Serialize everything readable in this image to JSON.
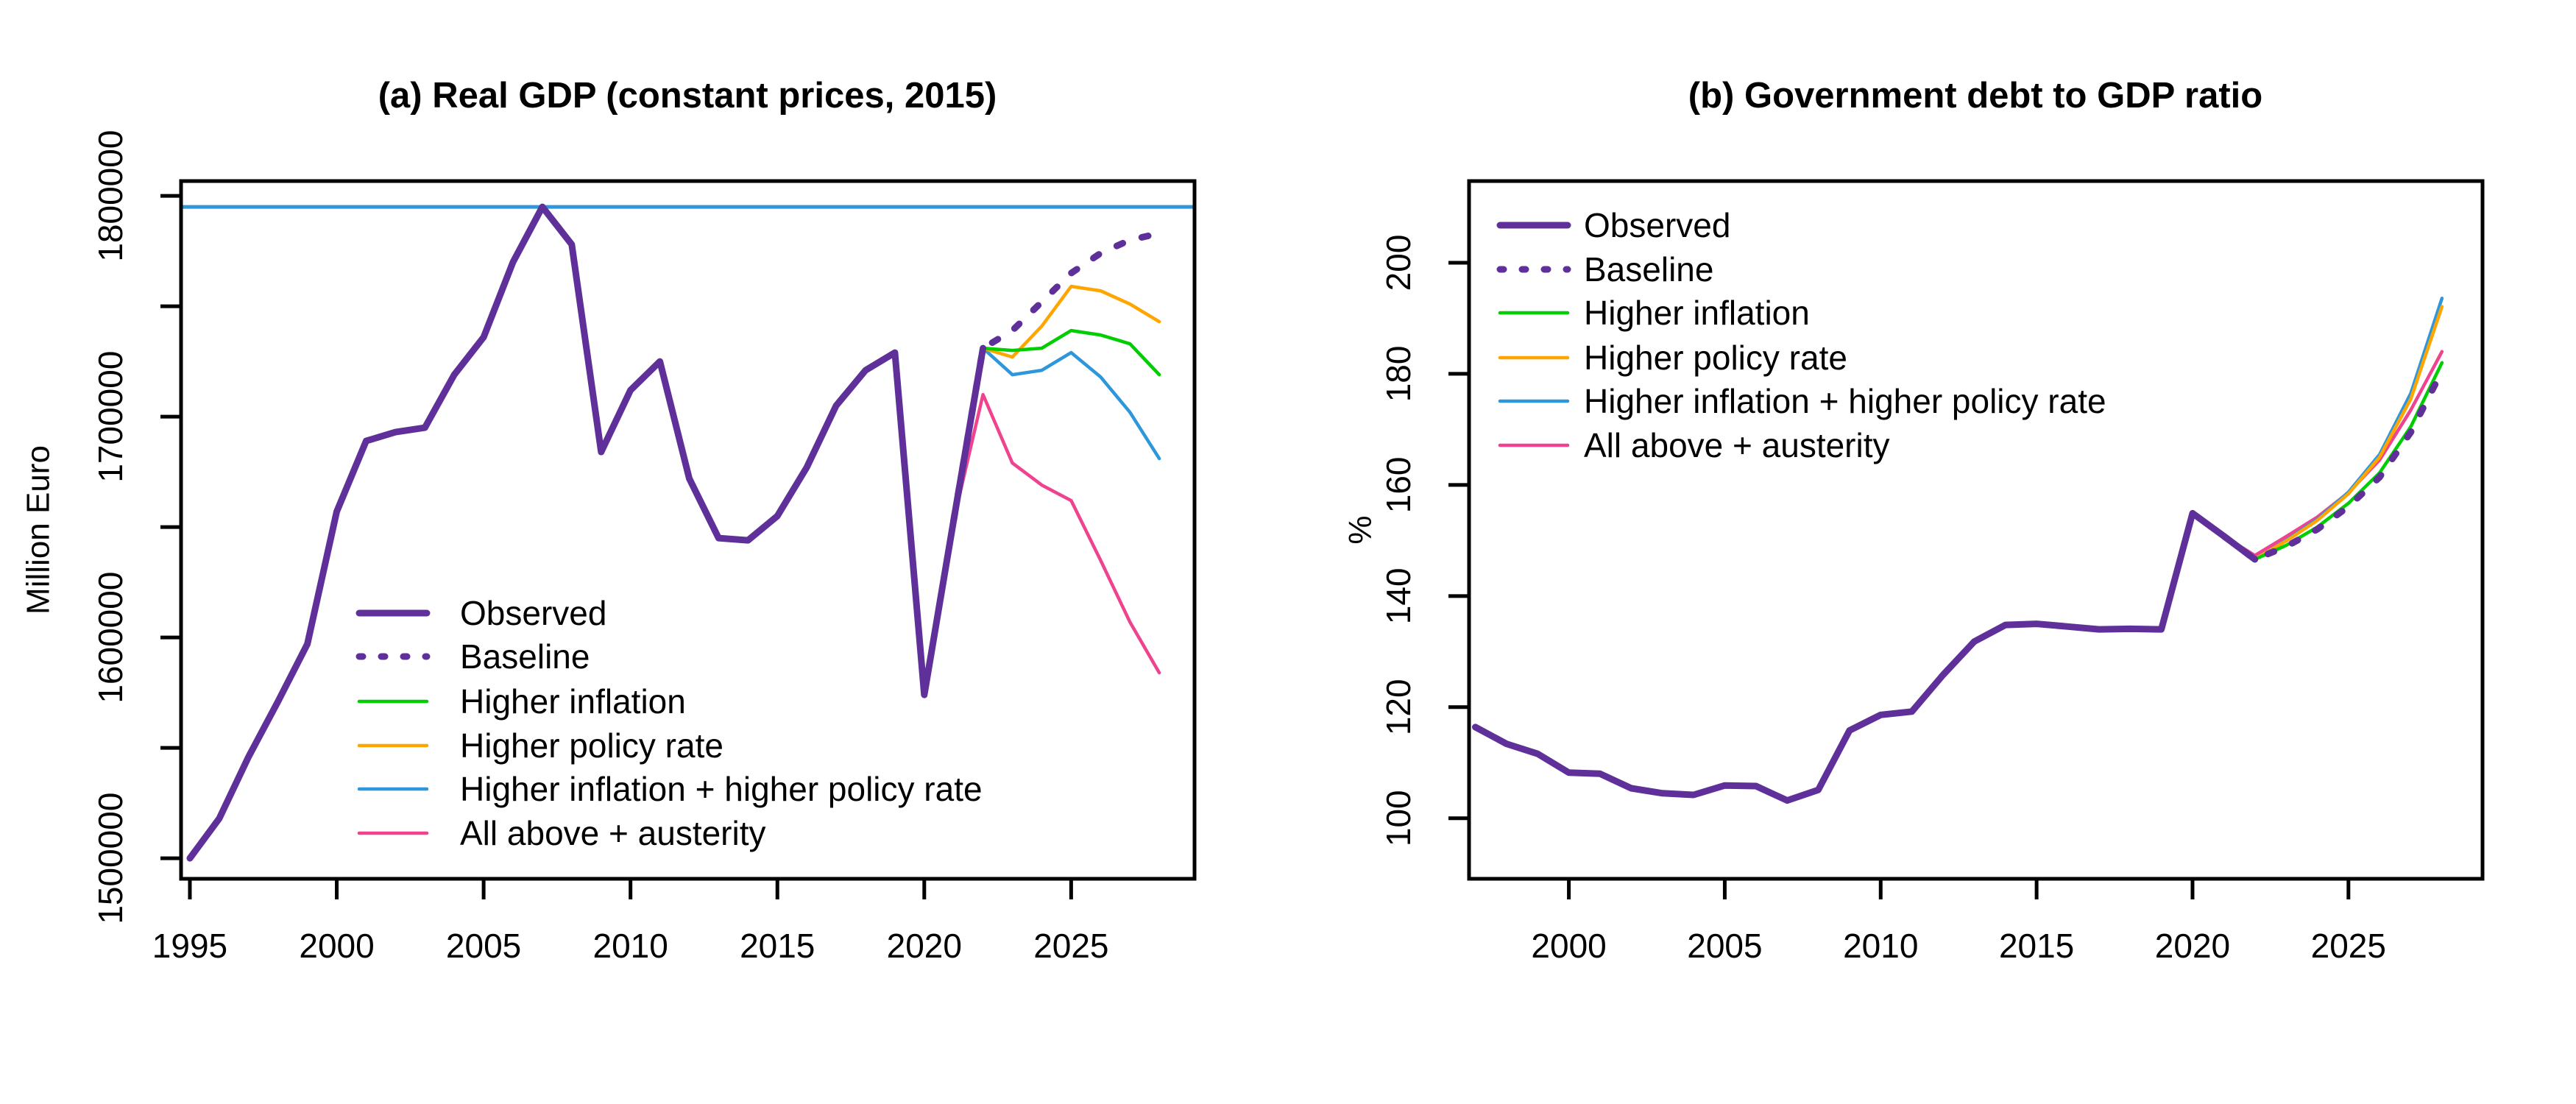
{
  "figure": {
    "background": "#ffffff",
    "axis_color": "#000000"
  },
  "chart_data": [
    {
      "id": "real-gdp",
      "type": "line",
      "title": "(a) Real GDP (constant prices, 2015)",
      "xlabel": "",
      "ylabel": "Million Euro",
      "xlim": [
        1994.7,
        2029.2
      ],
      "ylim": [
        1490700,
        1806700
      ],
      "grid": false,
      "legend_position": "left-bottom-inside",
      "x_ticks": [
        1995,
        2000,
        2005,
        2010,
        2015,
        2020,
        2025
      ],
      "y_ticks": [
        {
          "value": 1800000,
          "label": "1800000"
        },
        {
          "value": 1750000,
          "label": ""
        },
        {
          "value": 1700000,
          "label": "1700000"
        },
        {
          "value": 1650000,
          "label": ""
        },
        {
          "value": 1600000,
          "label": "1600000"
        },
        {
          "value": 1550000,
          "label": ""
        },
        {
          "value": 1500000,
          "label": "1500000"
        }
      ],
      "reference_line": {
        "value": 1795000,
        "color": "#2E97DB",
        "orientation": "horizontal"
      },
      "legend": [
        "Observed",
        "Baseline",
        "Higher inflation",
        "Higher policy rate",
        "Higher inflation + higher policy rate",
        "All above + austerity"
      ],
      "series": [
        {
          "name": "Observed",
          "color": "#60309A",
          "dash": "solid",
          "width": 9,
          "years": [
            1995,
            1996,
            1997,
            1998,
            1999,
            2000,
            2001,
            2002,
            2003,
            2004,
            2005,
            2006,
            2007,
            2008,
            2009,
            2010,
            2011,
            2012,
            2013,
            2014,
            2015,
            2016,
            2017,
            2018,
            2019,
            2020,
            2021,
            2022
          ],
          "values": [
            1500000,
            1518000,
            1546000,
            1571000,
            1597000,
            1657000,
            1689000,
            1693000,
            1695000,
            1719000,
            1736000,
            1770000,
            1795000,
            1778000,
            1684000,
            1712000,
            1725000,
            1672000,
            1645000,
            1644000,
            1655000,
            1677000,
            1705000,
            1721000,
            1729000,
            1574000,
            1653000,
            1731000
          ]
        },
        {
          "name": "Baseline",
          "color": "#60309A",
          "dash": "dotted",
          "width": 9,
          "years": [
            2021,
            2022,
            2023,
            2024,
            2025,
            2026,
            2027,
            2028
          ],
          "values": [
            1653000,
            1731000,
            1739000,
            1752000,
            1765000,
            1774000,
            1780000,
            1783000
          ]
        },
        {
          "name": "Higher inflation",
          "color": "#00CE00",
          "dash": "solid",
          "width": 4.5,
          "years": [
            2021,
            2022,
            2023,
            2024,
            2025,
            2026,
            2027,
            2028
          ],
          "values": [
            1653000,
            1731000,
            1730000,
            1731000,
            1739000,
            1737000,
            1733000,
            1719000
          ]
        },
        {
          "name": "Higher policy rate",
          "color": "#FFA500",
          "dash": "solid",
          "width": 4.5,
          "years": [
            2021,
            2022,
            2023,
            2024,
            2025,
            2026,
            2027,
            2028
          ],
          "values": [
            1653000,
            1731000,
            1727000,
            1741000,
            1759000,
            1757000,
            1751000,
            1743000
          ]
        },
        {
          "name": "Higher inflation + higher policy rate",
          "color": "#2E97DB",
          "dash": "solid",
          "width": 4.5,
          "years": [
            2021,
            2022,
            2023,
            2024,
            2025,
            2026,
            2027,
            2028
          ],
          "values": [
            1653000,
            1731000,
            1719000,
            1721000,
            1729000,
            1718000,
            1702000,
            1681000
          ]
        },
        {
          "name": "All above + austerity",
          "color": "#F0438F",
          "dash": "solid",
          "width": 4.5,
          "years": [
            2021,
            2022,
            2023,
            2024,
            2025,
            2026,
            2027,
            2028
          ],
          "values": [
            1653000,
            1710000,
            1679000,
            1669000,
            1662000,
            1635000,
            1607000,
            1584000
          ]
        }
      ]
    },
    {
      "id": "debt-to-gdp",
      "type": "line",
      "title": "(b) Government debt to GDP ratio",
      "xlabel": "",
      "ylabel": "%",
      "xlim": [
        1996.8,
        2029.3
      ],
      "ylim": [
        89.1,
        214.7
      ],
      "grid": false,
      "legend_position": "left-top-inside",
      "x_ticks": [
        2000,
        2005,
        2010,
        2015,
        2020,
        2025
      ],
      "y_ticks": [
        {
          "value": 200,
          "label": "200"
        },
        {
          "value": 180,
          "label": "180"
        },
        {
          "value": 160,
          "label": "160"
        },
        {
          "value": 140,
          "label": "140"
        },
        {
          "value": 120,
          "label": "120"
        },
        {
          "value": 100,
          "label": "100"
        }
      ],
      "reference_line": null,
      "legend": [
        "Observed",
        "Baseline",
        "Higher inflation",
        "Higher policy rate",
        "Higher inflation + higher policy rate",
        "All above + austerity"
      ],
      "series": [
        {
          "name": "Observed",
          "color": "#60309A",
          "dash": "solid",
          "width": 9,
          "years": [
            1997,
            1998,
            1999,
            2000,
            2001,
            2002,
            2003,
            2004,
            2005,
            2006,
            2007,
            2008,
            2009,
            2010,
            2011,
            2012,
            2013,
            2014,
            2015,
            2016,
            2017,
            2018,
            2019,
            2020,
            2021,
            2022
          ],
          "values": [
            116.4,
            113.4,
            111.6,
            108.2,
            108.0,
            105.4,
            104.5,
            104.2,
            105.9,
            105.8,
            103.2,
            105.1,
            115.8,
            118.6,
            119.2,
            125.8,
            131.8,
            134.8,
            135.0,
            134.5,
            134.0,
            134.1,
            134.0,
            154.9,
            150.8,
            146.6
          ]
        },
        {
          "name": "Baseline",
          "color": "#60309A",
          "dash": "dotted",
          "width": 9,
          "years": [
            2021,
            2022,
            2023,
            2024,
            2025,
            2026,
            2027,
            2028
          ],
          "values": [
            150.8,
            146.6,
            148.9,
            152.0,
            156.1,
            161.4,
            169.5,
            180.5
          ]
        },
        {
          "name": "Higher inflation",
          "color": "#00CE00",
          "dash": "solid",
          "width": 4.5,
          "years": [
            2021,
            2022,
            2023,
            2024,
            2025,
            2026,
            2027,
            2028
          ],
          "values": [
            150.8,
            146.6,
            149.1,
            152.4,
            156.7,
            162.2,
            170.5,
            182.0
          ]
        },
        {
          "name": "Higher policy rate",
          "color": "#FFA500",
          "dash": "solid",
          "width": 4.5,
          "years": [
            2021,
            2022,
            2023,
            2024,
            2025,
            2026,
            2027,
            2028
          ],
          "values": [
            150.8,
            146.6,
            149.9,
            153.6,
            158.4,
            165.0,
            175.5,
            192.1
          ]
        },
        {
          "name": "Higher inflation + higher policy rate",
          "color": "#2E97DB",
          "dash": "solid",
          "width": 4.5,
          "years": [
            2021,
            2022,
            2023,
            2024,
            2025,
            2026,
            2027,
            2028
          ],
          "values": [
            150.8,
            146.6,
            150.0,
            153.8,
            158.7,
            165.5,
            176.5,
            193.6
          ]
        },
        {
          "name": "All above + austerity",
          "color": "#F0438F",
          "dash": "solid",
          "width": 4.5,
          "years": [
            2021,
            2022,
            2023,
            2024,
            2025,
            2026,
            2027,
            2028
          ],
          "values": [
            150.8,
            147.3,
            150.7,
            154.2,
            158.6,
            164.5,
            173.5,
            184.0
          ]
        }
      ]
    }
  ]
}
